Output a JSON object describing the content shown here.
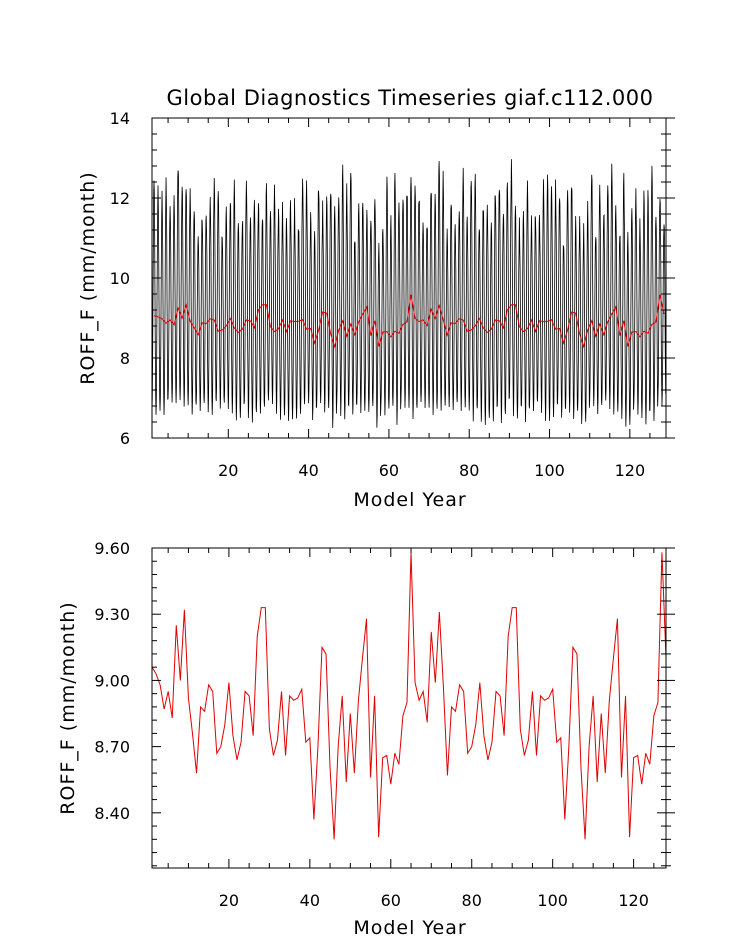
{
  "title": "Global Diagnostics Timeseries giaf.c112.000",
  "colors": {
    "monthly": "#000000",
    "annual": "#e00000",
    "frame": "#000000"
  },
  "chart_data": [
    {
      "type": "line",
      "title": "Global Diagnostics Timeseries giaf.c112.000",
      "xlabel": "Model Year",
      "ylabel": "ROFF_F (mm/month)",
      "xlim": [
        1,
        129
      ],
      "ylim": [
        6,
        14
      ],
      "xticks": [
        20,
        40,
        60,
        80,
        100,
        120
      ],
      "xtick_labels": [
        "20",
        "40",
        "60",
        "80",
        "100",
        "120"
      ],
      "yticks": [
        6,
        8,
        10,
        12,
        14
      ],
      "ytick_labels": [
        "6",
        "8",
        "10",
        "12",
        "14"
      ],
      "grid": false,
      "series": [
        {
          "role": "monthly",
          "color": "#000000",
          "monthly_low": 6.6,
          "monthly_high": 12.0,
          "note_values": "Monthly values oscillate annually between about 6.2-7.0 and 11.2-13.2 mm/month"
        },
        {
          "role": "annual_mean",
          "color": "#e00000",
          "values_ref": "annual_mean"
        }
      ]
    },
    {
      "type": "line",
      "xlabel": "Model Year",
      "ylabel": "ROFF_F (mm/month)",
      "xlim": [
        1,
        128
      ],
      "ylim": [
        8.15,
        9.6
      ],
      "xticks": [
        20,
        40,
        60,
        80,
        100,
        120
      ],
      "xtick_labels": [
        "20",
        "40",
        "60",
        "80",
        "100",
        "120"
      ],
      "yticks": [
        8.4,
        8.7,
        9.0,
        9.3,
        9.6
      ],
      "ytick_labels": [
        "8.40",
        "8.70",
        "9.00",
        "9.30",
        "9.60"
      ],
      "grid": false,
      "series": [
        {
          "role": "annual_mean",
          "color": "#e00000",
          "values_ref": "annual_mean"
        }
      ]
    }
  ],
  "annual_mean": {
    "x_start": 1,
    "values": [
      9.06,
      9.03,
      8.98,
      8.87,
      8.95,
      8.83,
      9.25,
      9.0,
      9.32,
      8.92,
      8.76,
      8.58,
      8.88,
      8.86,
      8.98,
      8.95,
      8.67,
      8.7,
      8.8,
      8.99,
      8.75,
      8.64,
      8.72,
      8.95,
      8.93,
      8.75,
      9.2,
      9.33,
      9.33,
      8.78,
      8.66,
      8.73,
      8.95,
      8.66,
      8.93,
      8.91,
      8.92,
      8.96,
      8.72,
      8.74,
      8.37,
      8.7,
      9.15,
      9.12,
      8.6,
      8.28,
      8.7,
      8.93,
      8.54,
      8.85,
      8.58,
      8.91,
      9.1,
      9.28,
      8.56,
      8.93,
      8.29,
      8.65,
      8.66,
      8.53,
      8.67,
      8.62,
      8.84,
      8.9,
      9.58,
      8.99,
      8.91,
      8.95,
      8.81,
      9.22,
      8.99,
      9.31,
      8.97,
      8.57,
      8.88,
      8.86,
      8.98,
      8.95,
      8.67,
      8.7,
      8.8,
      8.99,
      8.75,
      8.64,
      8.72,
      8.95,
      8.93,
      8.75,
      9.2,
      9.33,
      9.33,
      8.78,
      8.66,
      8.73,
      8.95,
      8.66,
      8.93,
      8.91,
      8.92,
      8.96,
      8.72,
      8.74,
      8.37,
      8.7,
      9.15,
      9.12,
      8.6,
      8.28,
      8.7,
      8.93,
      8.54,
      8.85,
      8.58,
      8.91,
      9.1,
      9.28,
      8.56,
      8.93,
      8.29,
      8.65,
      8.66,
      8.53,
      8.67,
      8.62,
      8.84,
      8.9,
      9.58,
      9.1
    ]
  }
}
